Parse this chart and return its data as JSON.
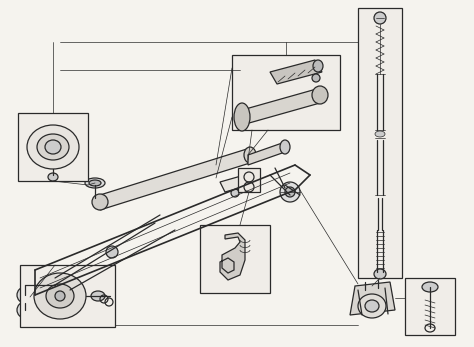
{
  "background_color": "#f5f3ee",
  "line_color": "#2a2a2a",
  "figsize": [
    4.74,
    3.47
  ],
  "dpi": 100,
  "lw_main": 0.9,
  "lw_thin": 0.5,
  "lw_thick": 1.2
}
